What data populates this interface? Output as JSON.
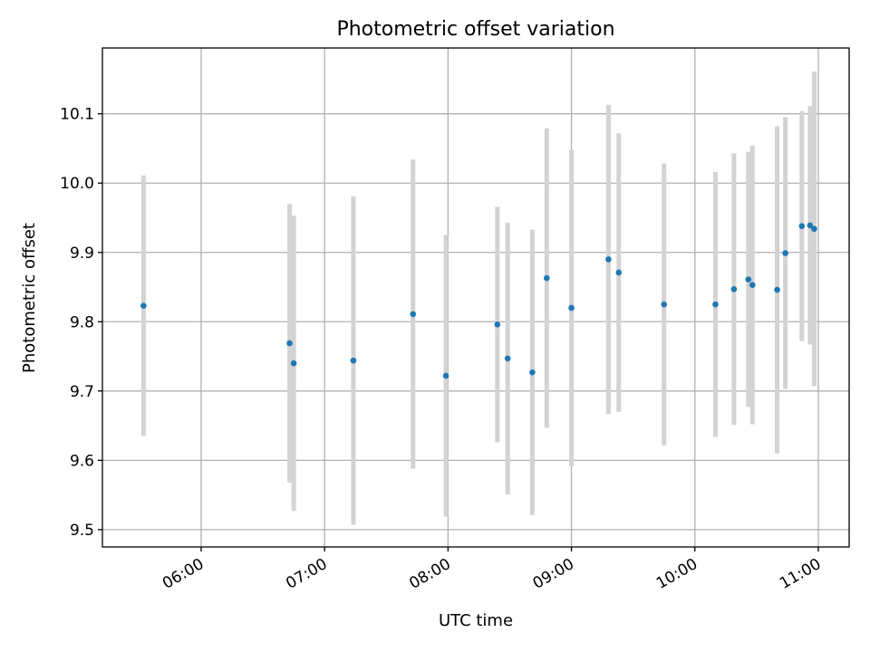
{
  "chart_data": {
    "type": "scatter",
    "title": "Photometric offset variation",
    "xlabel": "UTC time",
    "ylabel": "Photometric offset",
    "x_axis": "time (UTC, HH:MM)",
    "xlim": [
      "05:12",
      "11:15"
    ],
    "ylim": [
      9.475,
      10.195
    ],
    "xticks": [
      "06:00",
      "07:00",
      "08:00",
      "09:00",
      "10:00",
      "11:00"
    ],
    "yticks": [
      9.5,
      9.6,
      9.7,
      9.8,
      9.9,
      10.0,
      10.1
    ],
    "grid": true,
    "errorbar_color": "#d3d3d3",
    "point_color": "#1f77b4",
    "points": [
      {
        "x": "05:32",
        "y": 9.823,
        "err": 0.188
      },
      {
        "x": "06:43",
        "y": 9.769,
        "err": 0.201
      },
      {
        "x": "06:45",
        "y": 9.74,
        "err": 0.213
      },
      {
        "x": "07:14",
        "y": 9.744,
        "err": 0.237
      },
      {
        "x": "07:43",
        "y": 9.811,
        "err": 0.223
      },
      {
        "x": "07:59",
        "y": 9.722,
        "err": 0.203
      },
      {
        "x": "08:24",
        "y": 9.796,
        "err": 0.17
      },
      {
        "x": "08:29",
        "y": 9.747,
        "err": 0.196
      },
      {
        "x": "08:41",
        "y": 9.727,
        "err": 0.206
      },
      {
        "x": "08:48",
        "y": 9.863,
        "err": 0.216
      },
      {
        "x": "09:00",
        "y": 9.82,
        "err": 0.228
      },
      {
        "x": "09:18",
        "y": 9.89,
        "err": 0.223
      },
      {
        "x": "09:23",
        "y": 9.871,
        "err": 0.201
      },
      {
        "x": "09:45",
        "y": 9.825,
        "err": 0.203
      },
      {
        "x": "10:10",
        "y": 9.825,
        "err": 0.191
      },
      {
        "x": "10:19",
        "y": 9.847,
        "err": 0.196
      },
      {
        "x": "10:26",
        "y": 9.861,
        "err": 0.184
      },
      {
        "x": "10:28",
        "y": 9.853,
        "err": 0.201
      },
      {
        "x": "10:40",
        "y": 9.846,
        "err": 0.236
      },
      {
        "x": "10:44",
        "y": 9.899,
        "err": 0.196
      },
      {
        "x": "10:52",
        "y": 9.938,
        "err": 0.166
      },
      {
        "x": "10:56",
        "y": 9.939,
        "err": 0.172
      },
      {
        "x": "10:58",
        "y": 9.934,
        "err": 0.227
      }
    ]
  }
}
